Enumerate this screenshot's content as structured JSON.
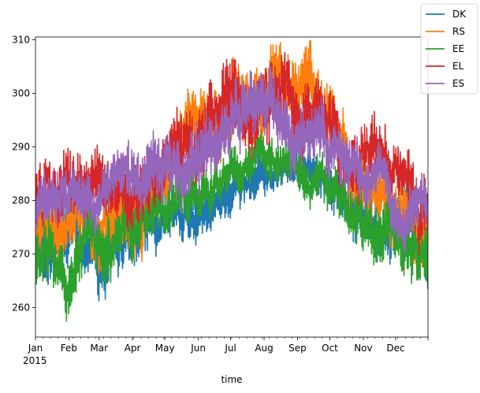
{
  "chart_data": {
    "type": "line",
    "title": "",
    "xlabel": "time",
    "ylabel": "",
    "year_label": "2015",
    "x_ticks": [
      "Jan",
      "Feb",
      "Mar",
      "Apr",
      "May",
      "Jun",
      "Jul",
      "Aug",
      "Sep",
      "Oct",
      "Nov",
      "Dec"
    ],
    "x_tick_days": [
      0,
      31,
      59,
      90,
      120,
      151,
      181,
      212,
      243,
      273,
      304,
      334
    ],
    "x_range_days": [
      0,
      364
    ],
    "y_ticks": [
      260,
      270,
      280,
      290,
      300,
      310
    ],
    "ylim": [
      254.5,
      310.5
    ],
    "grid": false,
    "legend_position": "top-right (outside axes)",
    "series_order_drawn": [
      "DK",
      "RS",
      "EE",
      "EL",
      "ES"
    ],
    "series": [
      {
        "name": "DK",
        "color": "#1f77b4",
        "monthly_baseline": [
          271,
          271,
          273,
          277,
          280,
          283,
          286,
          287,
          285,
          280,
          275,
          274
        ],
        "monthly_spread": [
          6,
          6,
          6,
          5,
          5,
          4,
          4,
          4,
          4,
          5,
          5,
          6
        ]
      },
      {
        "name": "RS",
        "color": "#ff7f0e",
        "monthly_baseline": [
          275,
          276,
          280,
          285,
          290,
          295,
          300,
          301,
          297,
          289,
          282,
          276
        ],
        "monthly_spread": [
          7,
          7,
          7,
          7,
          7,
          7,
          7,
          7,
          7,
          7,
          6,
          6
        ]
      },
      {
        "name": "EE",
        "color": "#2ca02c",
        "monthly_baseline": [
          269,
          269,
          272,
          276,
          279,
          283,
          287,
          288,
          284,
          278,
          273,
          272
        ],
        "monthly_spread": [
          6,
          6,
          6,
          5,
          5,
          4,
          4,
          4,
          4,
          5,
          6,
          6
        ]
      },
      {
        "name": "EL",
        "color": "#d62728",
        "monthly_baseline": [
          279,
          279,
          281,
          284,
          288,
          293,
          297,
          298,
          295,
          290,
          285,
          280
        ],
        "monthly_spread": [
          6,
          6,
          6,
          6,
          6,
          7,
          7,
          7,
          6,
          6,
          6,
          6
        ]
      },
      {
        "name": "ES",
        "color": "#9467bd",
        "monthly_baseline": [
          279,
          280,
          282,
          284,
          287,
          292,
          297,
          297,
          294,
          288,
          284,
          281
        ],
        "monthly_spread": [
          5,
          5,
          5,
          6,
          6,
          6,
          6,
          6,
          6,
          5,
          5,
          5
        ]
      }
    ]
  }
}
